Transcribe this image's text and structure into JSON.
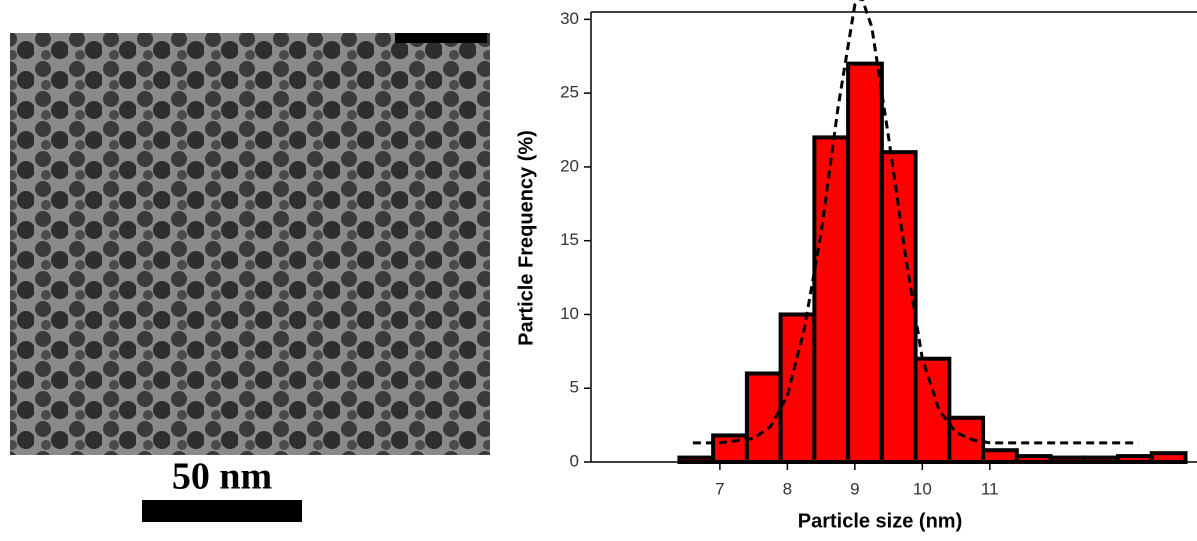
{
  "image": {
    "scale_bar_label": "50 nm"
  },
  "chart_data": {
    "type": "histogram",
    "xlabel": "Particle size (nm)",
    "ylabel": "Particle Frequency (%)",
    "bins": [
      6.4,
      6.9,
      7.4,
      7.9,
      8.4,
      8.9,
      9.4,
      9.9,
      10.4,
      10.9,
      11.4,
      11.9,
      12.4,
      12.9,
      13.4,
      13.9
    ],
    "values": [
      0.3,
      1.8,
      6,
      10,
      22,
      27,
      21,
      7,
      3,
      0.8,
      0.4,
      0.3,
      0.3,
      0.4,
      0.6
    ],
    "color": "#ff0000",
    "fit": {
      "x": [
        6.6,
        7.0,
        7.5,
        7.75,
        8.0,
        8.25,
        8.5,
        8.75,
        9.0,
        9.1,
        9.25,
        9.5,
        9.75,
        10.0,
        10.25,
        10.5,
        10.75,
        11.0,
        12.0,
        13.2
      ],
      "values": [
        1.3,
        1.3,
        1.6,
        2.4,
        4.5,
        9,
        15.5,
        24,
        31,
        31.5,
        29.5,
        22,
        14,
        7,
        3.5,
        2,
        1.5,
        1.3,
        1.3,
        1.3
      ],
      "color": "#000000"
    },
    "xlim": [
      5.09,
      14.07
    ],
    "ylim": [
      0,
      30.5
    ],
    "xticks": [
      7,
      8,
      9,
      10,
      11
    ],
    "yticks": [
      0,
      5,
      10,
      15,
      20,
      25,
      30
    ]
  }
}
